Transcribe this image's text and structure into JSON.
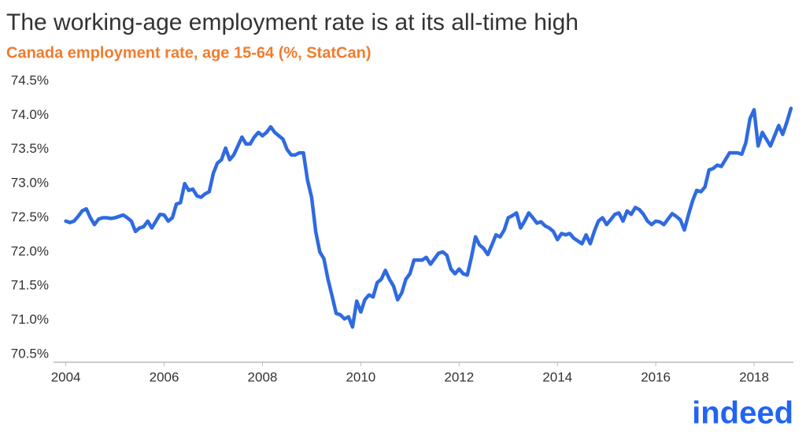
{
  "chart_data": {
    "type": "line",
    "title": "The working-age employment rate is at its all-time high",
    "subtitle": "Canada employment rate, age 15-64 (%, StatCan)",
    "x": [
      2004,
      2004.083,
      2004.167,
      2004.25,
      2004.333,
      2004.417,
      2004.5,
      2004.583,
      2004.667,
      2004.75,
      2004.833,
      2004.917,
      2005,
      2005.083,
      2005.167,
      2005.25,
      2005.333,
      2005.417,
      2005.5,
      2005.583,
      2005.667,
      2005.75,
      2005.833,
      2005.917,
      2006,
      2006.083,
      2006.167,
      2006.25,
      2006.333,
      2006.417,
      2006.5,
      2006.583,
      2006.667,
      2006.75,
      2006.833,
      2006.917,
      2007,
      2007.083,
      2007.167,
      2007.25,
      2007.333,
      2007.417,
      2007.5,
      2007.583,
      2007.667,
      2007.75,
      2007.833,
      2007.917,
      2008,
      2008.083,
      2008.167,
      2008.25,
      2008.333,
      2008.417,
      2008.5,
      2008.583,
      2008.667,
      2008.75,
      2008.833,
      2008.917,
      2009,
      2009.083,
      2009.167,
      2009.25,
      2009.333,
      2009.417,
      2009.5,
      2009.583,
      2009.667,
      2009.75,
      2009.833,
      2009.917,
      2010,
      2010.083,
      2010.167,
      2010.25,
      2010.333,
      2010.417,
      2010.5,
      2010.583,
      2010.667,
      2010.75,
      2010.833,
      2010.917,
      2011,
      2011.083,
      2011.167,
      2011.25,
      2011.333,
      2011.417,
      2011.5,
      2011.583,
      2011.667,
      2011.75,
      2011.833,
      2011.917,
      2012,
      2012.083,
      2012.167,
      2012.25,
      2012.333,
      2012.417,
      2012.5,
      2012.583,
      2012.667,
      2012.75,
      2012.833,
      2012.917,
      2013,
      2013.083,
      2013.167,
      2013.25,
      2013.333,
      2013.417,
      2013.5,
      2013.583,
      2013.667,
      2013.75,
      2013.833,
      2013.917,
      2014,
      2014.083,
      2014.167,
      2014.25,
      2014.333,
      2014.417,
      2014.5,
      2014.583,
      2014.667,
      2014.75,
      2014.833,
      2014.917,
      2015,
      2015.083,
      2015.167,
      2015.25,
      2015.333,
      2015.417,
      2015.5,
      2015.583,
      2015.667,
      2015.75,
      2015.833,
      2015.917,
      2016,
      2016.083,
      2016.167,
      2016.25,
      2016.333,
      2016.417,
      2016.5,
      2016.583,
      2016.667,
      2016.75,
      2016.833,
      2016.917,
      2017,
      2017.083,
      2017.167,
      2017.25,
      2017.333,
      2017.417,
      2017.5,
      2017.583,
      2017.667,
      2017.75,
      2017.833,
      2017.917,
      2018,
      2018.083,
      2018.167,
      2018.25,
      2018.333,
      2018.417,
      2018.5,
      2018.583,
      2018.667,
      2018.75
    ],
    "series": [
      {
        "name": "Employment rate",
        "color": "#2f6ae0",
        "values": [
          72.45,
          72.43,
          72.45,
          72.52,
          72.6,
          72.63,
          72.5,
          72.4,
          72.48,
          72.5,
          72.5,
          72.49,
          72.5,
          72.52,
          72.54,
          72.5,
          72.45,
          72.3,
          72.35,
          72.37,
          72.45,
          72.35,
          72.45,
          72.55,
          72.54,
          72.45,
          72.5,
          72.7,
          72.72,
          73.0,
          72.9,
          72.92,
          72.82,
          72.8,
          72.85,
          72.88,
          73.15,
          73.3,
          73.35,
          73.52,
          73.35,
          73.42,
          73.55,
          73.68,
          73.58,
          73.58,
          73.68,
          73.75,
          73.7,
          73.75,
          73.83,
          73.75,
          73.7,
          73.65,
          73.5,
          73.42,
          73.42,
          73.45,
          73.45,
          73.05,
          72.8,
          72.3,
          72.0,
          71.9,
          71.6,
          71.35,
          71.1,
          71.08,
          71.02,
          71.05,
          70.9,
          71.28,
          71.12,
          71.3,
          71.37,
          71.34,
          71.55,
          71.6,
          71.73,
          71.6,
          71.5,
          71.3,
          71.4,
          71.6,
          71.68,
          71.88,
          71.88,
          71.88,
          71.92,
          71.82,
          71.9,
          71.98,
          72.0,
          71.95,
          71.75,
          71.68,
          71.75,
          71.68,
          71.66,
          71.92,
          72.22,
          72.1,
          72.05,
          71.96,
          72.1,
          72.25,
          72.22,
          72.32,
          72.5,
          72.53,
          72.57,
          72.35,
          72.45,
          72.57,
          72.5,
          72.42,
          72.44,
          72.38,
          72.35,
          72.3,
          72.18,
          72.27,
          72.25,
          72.27,
          72.2,
          72.16,
          72.12,
          72.25,
          72.12,
          72.3,
          72.45,
          72.5,
          72.4,
          72.47,
          72.55,
          72.57,
          72.45,
          72.6,
          72.55,
          72.65,
          72.62,
          72.55,
          72.45,
          72.4,
          72.45,
          72.44,
          72.4,
          72.48,
          72.56,
          72.52,
          72.47,
          72.32,
          72.55,
          72.75,
          72.9,
          72.88,
          72.95,
          73.2,
          73.22,
          73.27,
          73.25,
          73.35,
          73.45,
          73.45,
          73.45,
          73.43,
          73.6,
          73.95,
          74.08,
          73.55,
          73.75,
          73.65,
          73.55,
          73.7,
          73.85,
          73.72,
          73.9,
          74.1
        ]
      }
    ],
    "xlim": [
      2003.75,
      2018.8
    ],
    "xticks": [
      2004,
      2006,
      2008,
      2010,
      2012,
      2014,
      2016,
      2018
    ],
    "ylim": [
      70.5,
      74.5
    ],
    "yticks": [
      {
        "value": 70.5,
        "label": "70.5%"
      },
      {
        "value": 71.0,
        "label": "71.0%"
      },
      {
        "value": 71.5,
        "label": "71.5%"
      },
      {
        "value": 72.0,
        "label": "72.0%"
      },
      {
        "value": 72.5,
        "label": "72.5%"
      },
      {
        "value": 73.0,
        "label": "73.0%"
      },
      {
        "value": 73.5,
        "label": "73.5%"
      },
      {
        "value": 74.0,
        "label": "74.0%"
      },
      {
        "value": 74.5,
        "label": "74.5%"
      }
    ],
    "grid": false
  },
  "brand": "indeed"
}
